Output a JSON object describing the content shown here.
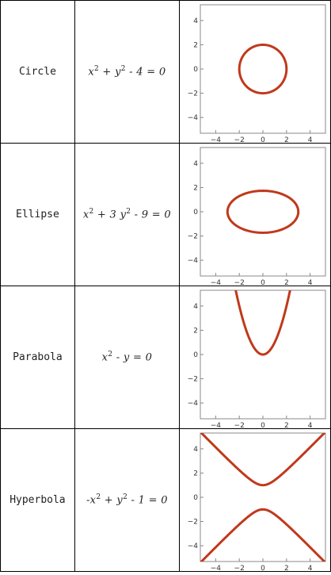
{
  "rows": [
    {
      "name": "Circle",
      "equation": [
        "x",
        "2",
        " + ",
        "y",
        "2",
        " - 4 = 0"
      ]
    },
    {
      "name": "Ellipse",
      "equation": [
        "x",
        "2",
        " + 3 ",
        "y",
        "2",
        " - 9 = 0"
      ]
    },
    {
      "name": "Parabola",
      "equation": [
        "x",
        "2",
        " - ",
        "y",
        "",
        " = 0"
      ]
    },
    {
      "name": "Hyperbola",
      "equation": [
        "-x",
        "2",
        " + ",
        "y",
        "2",
        " - 1 = 0"
      ]
    }
  ],
  "colors": {
    "curve": "#c0391b",
    "frame": "#888888"
  },
  "chart_data": [
    {
      "type": "line",
      "title": "",
      "xlim": [
        -5.3,
        5.3
      ],
      "ylim": [
        -5.3,
        5.3
      ],
      "xticks": [
        "-4",
        "-2",
        "0",
        "2",
        "4"
      ],
      "yticks": [
        "4",
        "2",
        "0",
        "-2",
        "-4"
      ],
      "curve": "x^2 + y^2 - 4 = 0",
      "shape": "circle",
      "params": {
        "rx": 2,
        "ry": 2
      }
    },
    {
      "type": "line",
      "title": "",
      "xlim": [
        -5.3,
        5.3
      ],
      "ylim": [
        -5.3,
        5.3
      ],
      "xticks": [
        "-4",
        "-2",
        "0",
        "2",
        "4"
      ],
      "yticks": [
        "4",
        "2",
        "0",
        "-2",
        "-4"
      ],
      "curve": "x^2 + 3y^2 - 9 = 0",
      "shape": "ellipse",
      "params": {
        "rx": 3,
        "ry": 1.732
      }
    },
    {
      "type": "line",
      "title": "",
      "xlim": [
        -5.3,
        5.3
      ],
      "ylim": [
        -5.3,
        5.3
      ],
      "xticks": [
        "-4",
        "-2",
        "0",
        "2",
        "4"
      ],
      "yticks": [
        "4",
        "2",
        "0",
        "-2",
        "-4"
      ],
      "curve": "x^2 - y = 0",
      "shape": "parabola",
      "params": {}
    },
    {
      "type": "line",
      "title": "",
      "xlim": [
        -5.3,
        5.3
      ],
      "ylim": [
        -5.3,
        5.3
      ],
      "xticks": [
        "-4",
        "-2",
        "0",
        "2",
        "4"
      ],
      "yticks": [
        "4",
        "2",
        "0",
        "-2",
        "-4"
      ],
      "curve": "-x^2 + y^2 - 1 = 0",
      "shape": "hyperbola",
      "params": {}
    }
  ]
}
